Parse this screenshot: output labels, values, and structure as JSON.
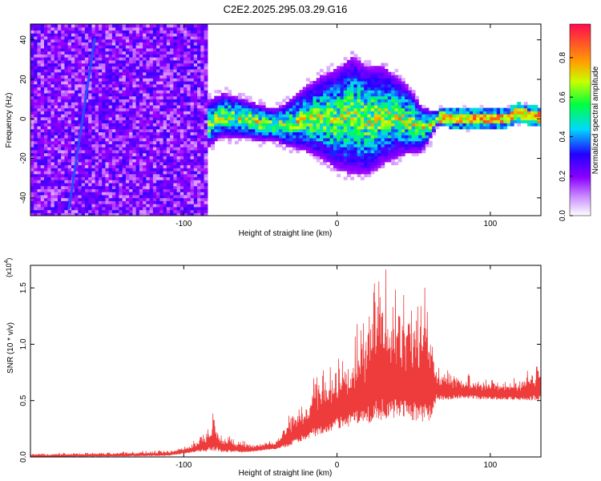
{
  "figure": {
    "title": "C2E2.2025.295.03.29.G16"
  },
  "chart_data": [
    {
      "type": "heatmap",
      "xlabel": "Height of straight line (km)",
      "ylabel": "Frequency (Hz)",
      "xlim": [
        -200,
        133
      ],
      "ylim": [
        -49,
        48
      ],
      "xticks": [
        -100,
        0,
        100
      ],
      "yticks": [
        -40,
        -20,
        0,
        20,
        40
      ],
      "colorbar": {
        "label": "Normalized spectral amplitude",
        "range": [
          0,
          0.97
        ],
        "ticks": [
          "0.0",
          "0.2",
          "0.4",
          "0.6",
          "0.8"
        ],
        "tick_values": [
          0,
          0.2,
          0.4,
          0.6,
          0.8
        ],
        "colormap": [
          "#ffffff",
          "#9b00ff",
          "#2200ff",
          "#00d4ff",
          "#00ff44",
          "#d8ff00",
          "#ff9000",
          "#ff1040"
        ]
      },
      "ridge": [
        [
          -200,
          0
        ],
        [
          -150,
          0
        ],
        [
          -110,
          0
        ],
        [
          -85,
          -3
        ],
        [
          -75,
          2
        ],
        [
          -60,
          0
        ],
        [
          -50,
          -2
        ],
        [
          -35,
          -3
        ],
        [
          -20,
          0
        ],
        [
          -10,
          1
        ],
        [
          0,
          0
        ],
        [
          10,
          2
        ],
        [
          20,
          -1
        ],
        [
          30,
          2
        ],
        [
          45,
          0
        ],
        [
          55,
          -5
        ],
        [
          62,
          -2
        ],
        [
          66,
          1
        ],
        [
          90,
          0
        ],
        [
          110,
          0
        ],
        [
          118,
          3
        ],
        [
          133,
          1
        ]
      ],
      "band_halfwidth": [
        [
          -200,
          48
        ],
        [
          -90,
          40
        ],
        [
          -85,
          12
        ],
        [
          -40,
          8
        ],
        [
          -30,
          12
        ],
        [
          10,
          30
        ],
        [
          30,
          25
        ],
        [
          50,
          15
        ],
        [
          60,
          8
        ],
        [
          66,
          3
        ],
        [
          133,
          3
        ]
      ],
      "diagonal_feature": {
        "x": [
          -175,
          -158
        ],
        "y": [
          -46,
          41
        ]
      }
    },
    {
      "type": "line",
      "xlabel": "Height of straight line (km)",
      "ylabel": "SNR (10 * v/v)",
      "y_multiplier": "(x10",
      "y_multiplier_exp": "4",
      "y_multiplier_close": ")",
      "xlim": [
        -200,
        133
      ],
      "ylim": [
        0,
        1.7
      ],
      "xticks": [
        -100,
        0,
        100
      ],
      "yticks": [
        "0.0",
        "0.5",
        "1.0",
        "1.5"
      ],
      "ytick_values": [
        0,
        0.5,
        1.0,
        1.5
      ],
      "color": "#ee3b3b",
      "envelope": [
        [
          -200,
          0.03
        ],
        [
          -150,
          0.04
        ],
        [
          -110,
          0.06
        ],
        [
          -95,
          0.12
        ],
        [
          -85,
          0.25
        ],
        [
          -80,
          0.45
        ],
        [
          -75,
          0.2
        ],
        [
          -55,
          0.12
        ],
        [
          -40,
          0.15
        ],
        [
          -30,
          0.4
        ],
        [
          -20,
          0.55
        ],
        [
          -15,
          0.8
        ],
        [
          -10,
          0.75
        ],
        [
          0,
          0.9
        ],
        [
          10,
          1.1
        ],
        [
          20,
          1.35
        ],
        [
          27,
          1.65
        ],
        [
          33,
          1.7
        ],
        [
          40,
          1.4
        ],
        [
          50,
          1.5
        ],
        [
          58,
          1.5
        ],
        [
          63,
          1.2
        ],
        [
          66,
          0.8
        ],
        [
          80,
          0.75
        ],
        [
          100,
          0.7
        ],
        [
          120,
          0.7
        ],
        [
          133,
          0.9
        ]
      ],
      "floor": [
        [
          -200,
          0.0
        ],
        [
          -110,
          0.01
        ],
        [
          -90,
          0.05
        ],
        [
          -60,
          0.04
        ],
        [
          -35,
          0.08
        ],
        [
          -20,
          0.15
        ],
        [
          0,
          0.25
        ],
        [
          20,
          0.3
        ],
        [
          40,
          0.35
        ],
        [
          60,
          0.3
        ],
        [
          65,
          0.5
        ],
        [
          80,
          0.52
        ],
        [
          133,
          0.5
        ]
      ]
    }
  ]
}
